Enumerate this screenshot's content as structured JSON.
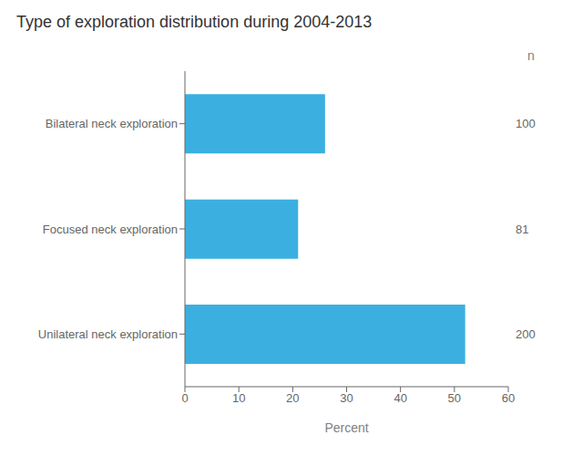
{
  "chart_data": {
    "type": "bar",
    "title": "Type of exploration distribution during 2004-2013",
    "orientation": "horizontal",
    "categories": [
      "Bilateral neck exploration",
      "Focused neck exploration",
      "Unilateral neck exploration"
    ],
    "values": [
      26,
      21,
      52
    ],
    "color": "#3BB0E0",
    "xlabel": "Percent",
    "xlim": [
      0,
      60
    ],
    "xticks": [
      0,
      10,
      20,
      30,
      40,
      50,
      60
    ],
    "n": [
      100,
      81,
      200
    ],
    "n_label": "n",
    "grid": false
  }
}
